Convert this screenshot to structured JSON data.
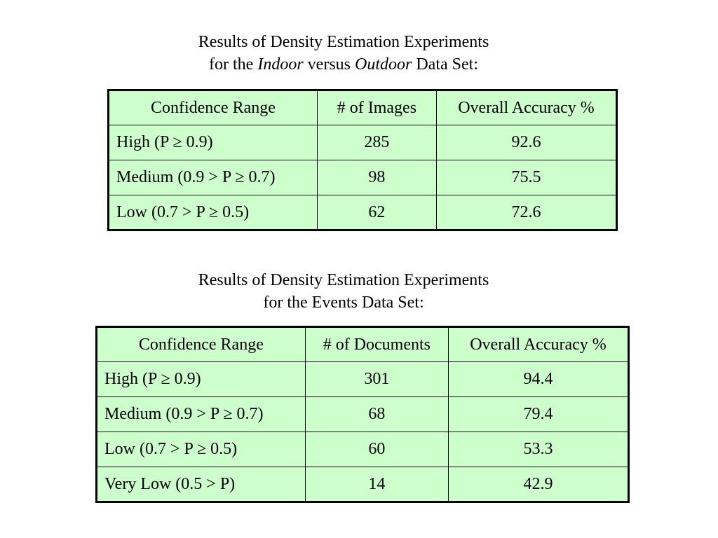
{
  "section1": {
    "caption_line1": "Results of Density Estimation Experiments",
    "caption_line2_prefix": "for the ",
    "caption_line2_italic1": "Indoor",
    "caption_line2_mid": " versus ",
    "caption_line2_italic2": "Outdoor",
    "caption_line2_suffix": " Data Set:",
    "headers": [
      "Confidence Range",
      "# of Images",
      "Overall Accuracy %"
    ],
    "rows": [
      [
        "High (P ≥ 0.9)",
        "285",
        "92.6"
      ],
      [
        "Medium (0.9 > P ≥ 0.7)",
        "98",
        "75.5"
      ],
      [
        "Low (0.7 > P ≥ 0.5)",
        "62",
        "72.6"
      ]
    ]
  },
  "section2": {
    "caption_line1": "Results of Density Estimation Experiments",
    "caption_line2": "for the Events Data Set:",
    "headers": [
      "Confidence Range",
      "# of Documents",
      "Overall Accuracy %"
    ],
    "rows": [
      [
        "High (P ≥ 0.9)",
        "301",
        "94.4"
      ],
      [
        "Medium (0.9 > P ≥ 0.7)",
        "68",
        "79.4"
      ],
      [
        "Low (0.7 > P ≥ 0.5)",
        "60",
        "53.3"
      ],
      [
        "Very Low (0.5 > P)",
        "14",
        "42.9"
      ]
    ]
  },
  "colors": {
    "table_background": "#ccffcc",
    "border": "#000000",
    "text": "#000000"
  }
}
